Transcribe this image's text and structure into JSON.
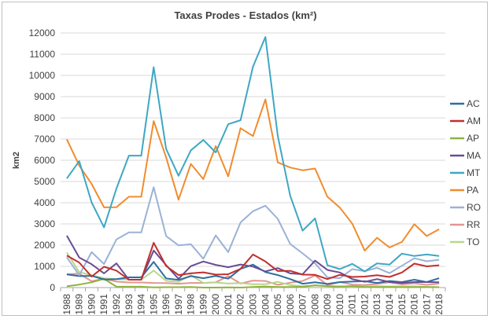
{
  "chart_data": {
    "type": "line",
    "title": "Taxas Prodes - Estados (km²)",
    "xlabel": "",
    "ylabel": "km2",
    "ylim": [
      0,
      12000
    ],
    "ystep": 1000,
    "grid": true,
    "legend_placement": "right",
    "x": [
      "1988",
      "1989",
      "1990",
      "1991",
      "1992",
      "1993",
      "1994",
      "1995",
      "1996",
      "1997",
      "1998",
      "1999",
      "2000",
      "2001",
      "2002",
      "2003",
      "2004",
      "2005",
      "2006",
      "2007",
      "2008",
      "2009",
      "2010",
      "2011",
      "2012",
      "2013",
      "2014",
      "2015",
      "2016",
      "2017",
      "2018"
    ],
    "series": [
      {
        "name": "AC",
        "color": "#2e6e9e",
        "values": [
          620,
          540,
          550,
          380,
          400,
          480,
          480,
          1210,
          430,
          360,
          540,
          440,
          550,
          420,
          880,
          1080,
          730,
          590,
          400,
          180,
          250,
          170,
          260,
          280,
          300,
          220,
          310,
          260,
          370,
          260,
          440
        ]
      },
      {
        "name": "AM",
        "color": "#c0302e",
        "values": [
          1510,
          1180,
          520,
          980,
          800,
          370,
          370,
          2110,
          1020,
          590,
          670,
          720,
          610,
          630,
          880,
          1560,
          1230,
          780,
          790,
          610,
          600,
          400,
          600,
          500,
          520,
          580,
          500,
          710,
          1130,
          1000,
          1050
        ]
      },
      {
        "name": "AP",
        "color": "#8fb33e",
        "values": [
          60,
          140,
          250,
          410,
          40,
          40,
          40,
          10,
          20,
          20,
          30,
          0,
          0,
          10,
          0,
          30,
          50,
          30,
          30,
          40,
          100,
          70,
          50,
          70,
          30,
          20,
          30,
          20,
          20,
          30,
          20
        ]
      },
      {
        "name": "MA",
        "color": "#6a4c93",
        "values": [
          2450,
          1420,
          1100,
          670,
          1140,
          370,
          370,
          1750,
          1060,
          410,
          1010,
          1230,
          1070,
          960,
          1090,
          990,
          760,
          920,
          670,
          630,
          1270,
          830,
          710,
          400,
          270,
          400,
          260,
          210,
          260,
          260,
          250
        ]
      },
      {
        "name": "MT",
        "color": "#3ea7c4",
        "values": [
          5140,
          5960,
          4020,
          2840,
          4670,
          6220,
          6220,
          10390,
          6540,
          5270,
          6470,
          6960,
          6370,
          7700,
          7890,
          10410,
          11810,
          7150,
          4330,
          2680,
          3260,
          1050,
          870,
          1120,
          760,
          1140,
          1080,
          1600,
          1490,
          1560,
          1490
        ]
      },
      {
        "name": "PA",
        "color": "#f08c2e",
        "values": [
          6990,
          5750,
          4890,
          3780,
          3790,
          4280,
          4280,
          7850,
          6140,
          4140,
          5830,
          5110,
          6670,
          5240,
          7510,
          7140,
          8870,
          5900,
          5660,
          5530,
          5610,
          4280,
          3770,
          3010,
          1740,
          2350,
          1890,
          2150,
          2990,
          2430,
          2750
        ]
      },
      {
        "name": "RO",
        "color": "#9bb2d6",
        "values": [
          1430,
          580,
          1670,
          1110,
          2270,
          2600,
          2600,
          4730,
          2430,
          1990,
          2040,
          1360,
          2460,
          1670,
          3070,
          3600,
          3860,
          3240,
          2050,
          1610,
          1140,
          480,
          440,
          870,
          770,
          930,
          680,
          1030,
          1380,
          1240,
          1310
        ]
      },
      {
        "name": "RR",
        "color": "#e39594",
        "values": [
          630,
          650,
          300,
          420,
          280,
          240,
          240,
          220,
          210,
          180,
          220,
          220,
          250,
          540,
          190,
          330,
          310,
          130,
          230,
          310,
          570,
          120,
          260,
          140,
          120,
          170,
          250,
          150,
          200,
          130,
          190
        ]
      },
      {
        "name": "TO",
        "color": "#b9d68a",
        "values": [
          1650,
          730,
          580,
          440,
          400,
          370,
          370,
          800,
          320,
          270,
          580,
          220,
          240,
          190,
          210,
          160,
          160,
          270,
          120,
          60,
          110,
          60,
          50,
          40,
          50,
          70,
          50,
          60,
          60,
          30,
          20
        ]
      }
    ]
  }
}
